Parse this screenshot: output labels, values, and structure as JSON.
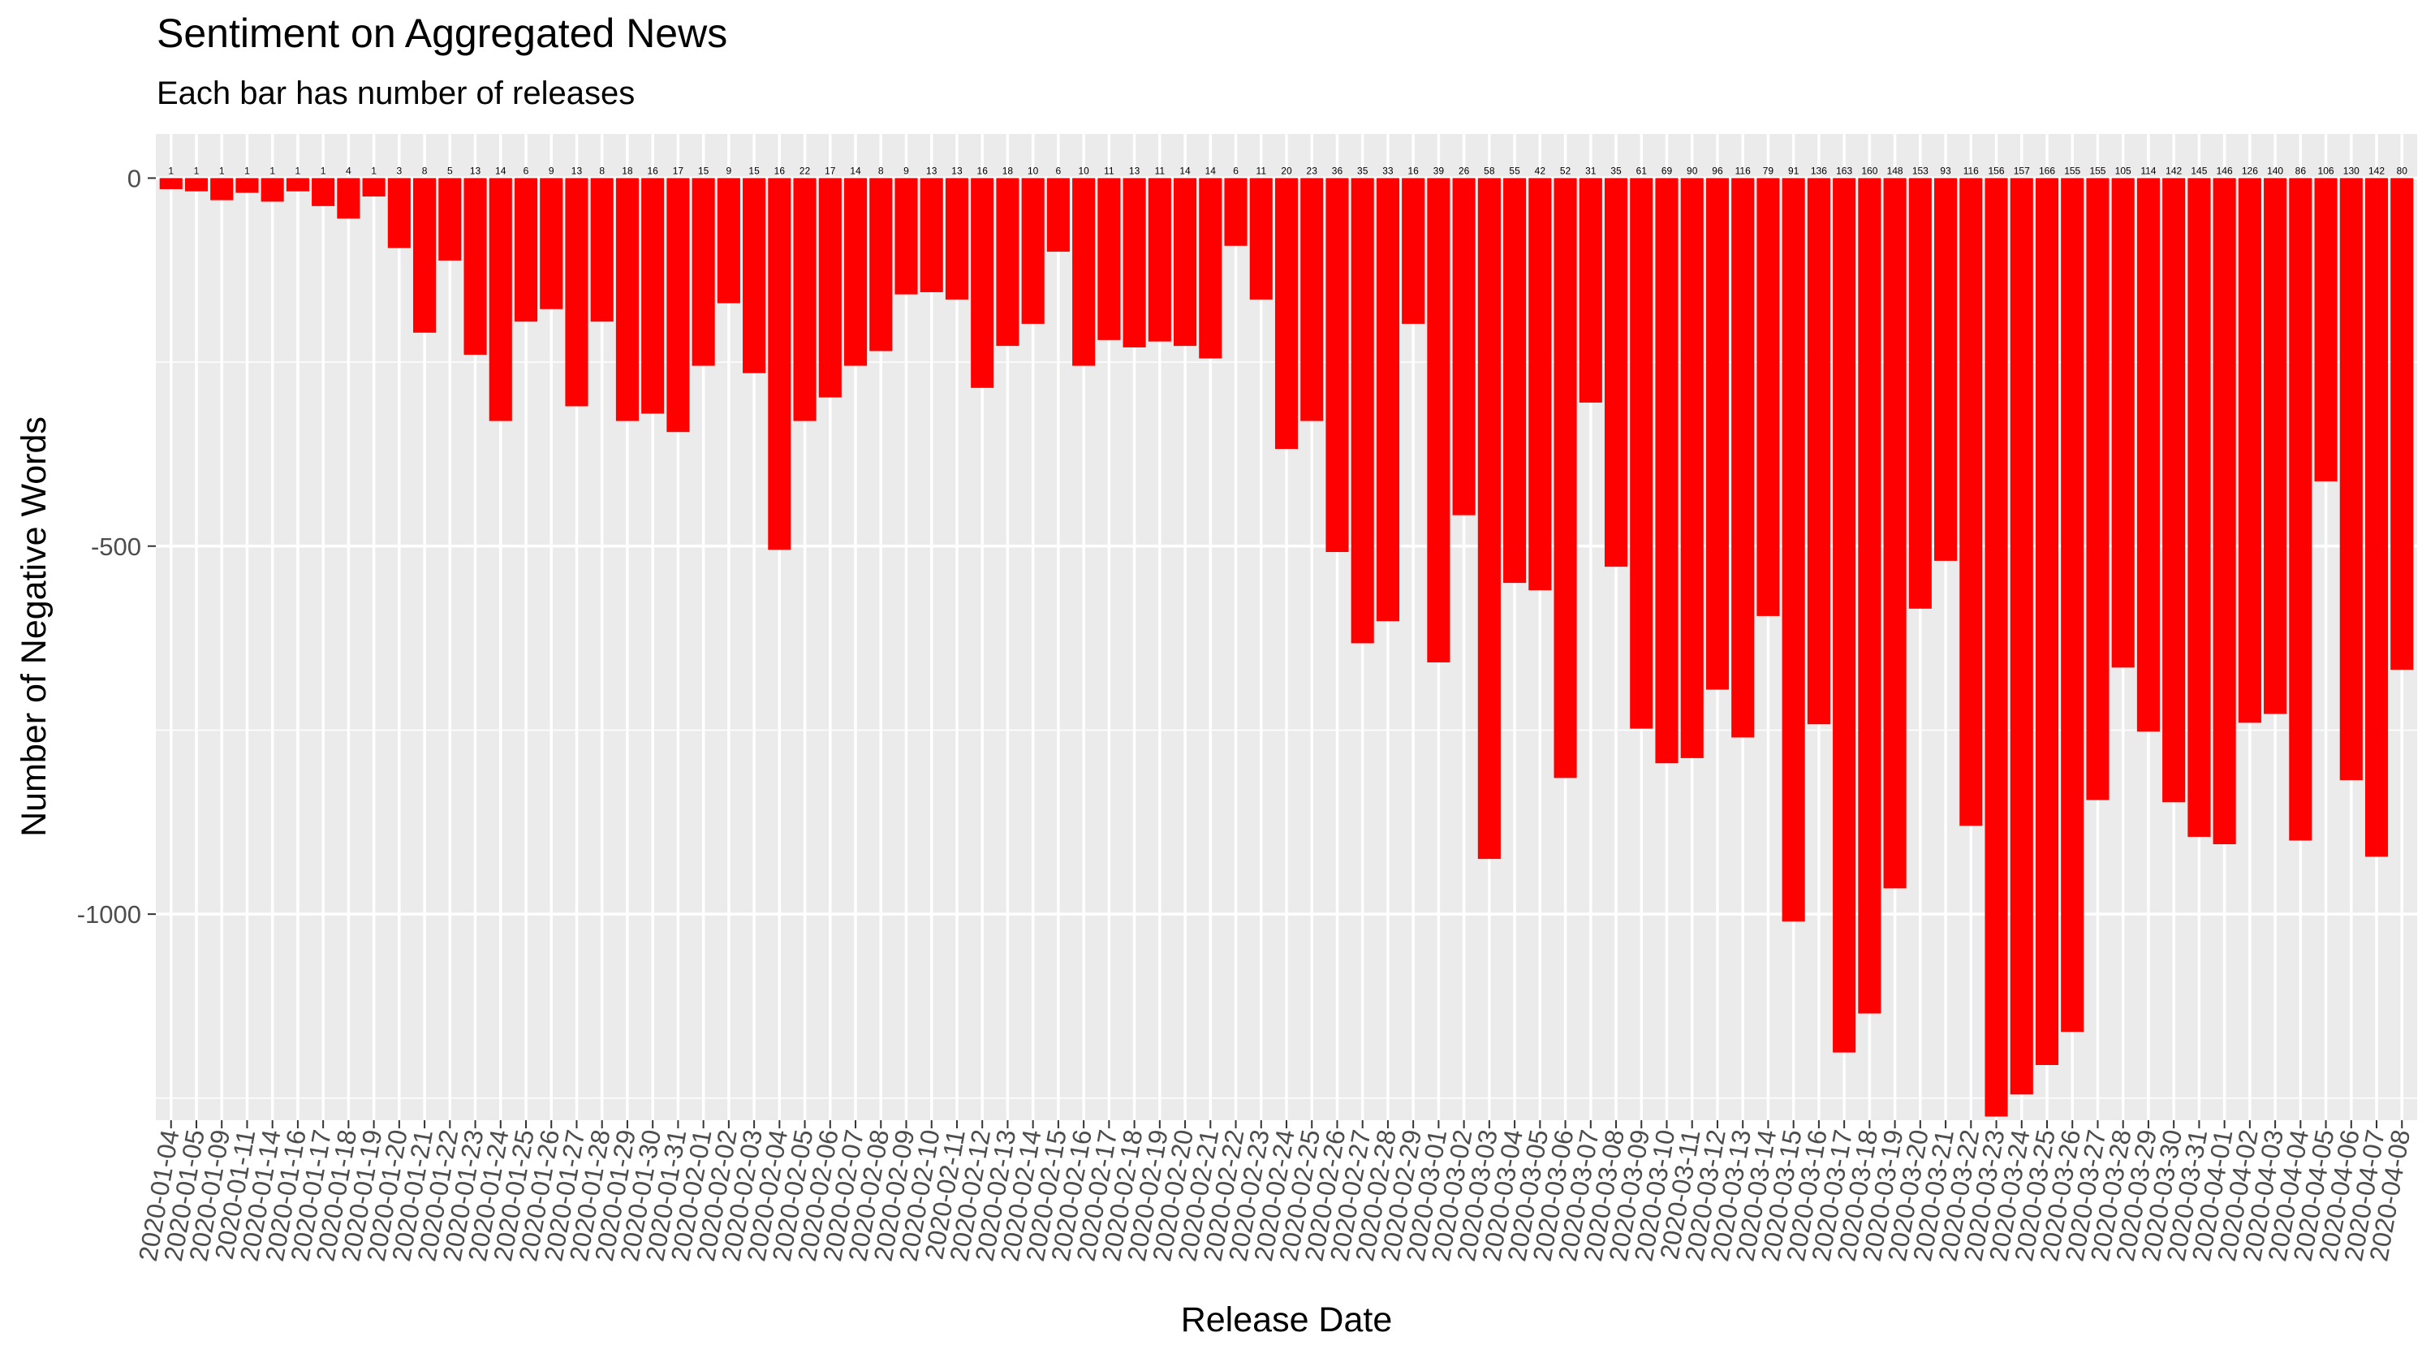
{
  "chart_data": {
    "type": "bar",
    "title": "Sentiment on Aggregated News",
    "subtitle": "Each bar has number of releases",
    "xlabel": "Release Date",
    "ylabel": "Number of Negative Words",
    "ylim": [
      -1280,
      60
    ],
    "yticks": [
      0,
      -500,
      -1000
    ],
    "ytick_labels": [
      "0",
      "-500",
      "-1000"
    ],
    "grid": true,
    "legend": "none",
    "bar_color": "#ff0000",
    "panel_color": "#ebebeb",
    "categories": [
      "2020-01-04",
      "2020-01-05",
      "2020-01-09",
      "2020-01-11",
      "2020-01-14",
      "2020-01-16",
      "2020-01-17",
      "2020-01-18",
      "2020-01-19",
      "2020-01-20",
      "2020-01-21",
      "2020-01-22",
      "2020-01-23",
      "2020-01-24",
      "2020-01-25",
      "2020-01-26",
      "2020-01-27",
      "2020-01-28",
      "2020-01-29",
      "2020-01-30",
      "2020-01-31",
      "2020-02-01",
      "2020-02-02",
      "2020-02-03",
      "2020-02-04",
      "2020-02-05",
      "2020-02-06",
      "2020-02-07",
      "2020-02-08",
      "2020-02-09",
      "2020-02-10",
      "2020-02-11",
      "2020-02-12",
      "2020-02-13",
      "2020-02-14",
      "2020-02-15",
      "2020-02-16",
      "2020-02-17",
      "2020-02-18",
      "2020-02-19",
      "2020-02-20",
      "2020-02-21",
      "2020-02-22",
      "2020-02-23",
      "2020-02-24",
      "2020-02-25",
      "2020-02-26",
      "2020-02-27",
      "2020-02-28",
      "2020-02-29",
      "2020-03-01",
      "2020-03-02",
      "2020-03-03",
      "2020-03-04",
      "2020-03-05",
      "2020-03-06",
      "2020-03-07",
      "2020-03-08",
      "2020-03-09",
      "2020-03-10",
      "2020-03-11",
      "2020-03-12",
      "2020-03-13",
      "2020-03-14",
      "2020-03-15",
      "2020-03-16",
      "2020-03-17",
      "2020-03-18",
      "2020-03-19",
      "2020-03-20",
      "2020-03-21",
      "2020-03-22",
      "2020-03-23",
      "2020-03-24",
      "2020-03-25",
      "2020-03-26",
      "2020-03-27",
      "2020-03-28",
      "2020-03-29",
      "2020-03-30",
      "2020-03-31",
      "2020-04-01",
      "2020-04-02",
      "2020-04-03",
      "2020-04-04",
      "2020-04-05",
      "2020-04-06",
      "2020-04-07",
      "2020-04-08"
    ],
    "tick_labels": [
      "2020-01-04",
      "2020-01-05",
      "2020-01-09",
      "2020-01-11",
      "2020-01-14",
      "2020-01-16",
      "2020-01-17",
      "2020-01-18",
      "2020-01-19",
      "2020-01-20",
      "2020-01-21",
      "2020-01-22",
      "2020-01-23",
      "2020-01-24",
      "2020-01-25",
      "2020-01-26",
      "2020-01-27",
      "2020-01-28",
      "2020-01-29",
      "2020-01-30",
      "2020-01-31",
      "2020-02-01",
      "2020-02-02",
      "2020-02-03",
      "2020-02-04",
      "2020-02-05",
      "2020-02-06",
      "2020-02-07",
      "2020-02-08",
      "2020-02-09",
      "2020-02-10",
      "2020-02-11",
      "2020-02-12",
      "2020-02-13",
      "2020-02-14",
      "2020-02-15",
      "2020-02-16",
      "2020-02-17",
      "2020-02-18",
      "2020-02-19",
      "2020-02-20",
      "2020-02-21",
      "2020-02-22",
      "2020-02-23",
      "2020-02-24",
      "2020-02-25",
      "2020-02-26",
      "2020-02-27",
      "2020-02-28",
      "2020-02-29",
      "2020-03-01",
      "2020-03-02",
      "2020-03-03",
      "2020-03-04",
      "2020-03-05",
      "2020-03-06",
      "2020-03-07",
      "2020-03-08",
      "2020-03-09",
      "2020-03-10",
      "2020-03-11",
      "2020-03-12",
      "2020-03-13",
      "2020-03-14",
      "2020-03-15",
      "2020-03-16",
      "2020-03-17",
      "2020-03-18",
      "2020-03-19",
      "2020-03-20",
      "2020-03-21",
      "2020-03-22",
      "2020-03-23",
      "2020-03-24",
      "2020-03-25",
      "2020-03-26",
      "2020-03-27",
      "2020-03-28",
      "2020-03-29",
      "2020-03-30",
      "2020-03-31",
      "2020-04-01",
      "2020-04-02",
      "2020-04-03",
      "2020-04-04",
      "2020-04-05",
      "2020-04-06",
      "2020-04-07",
      "2020-04-08"
    ],
    "values": [
      -15,
      -18,
      -30,
      -20,
      -32,
      -18,
      -38,
      -55,
      -25,
      -95,
      -210,
      -112,
      -240,
      -330,
      -195,
      -178,
      -310,
      -195,
      -330,
      -320,
      -345,
      -255,
      -170,
      -265,
      -505,
      -330,
      -298,
      -255,
      -235,
      -158,
      -155,
      -165,
      -285,
      -228,
      -198,
      -100,
      -255,
      -220,
      -230,
      -222,
      -228,
      -245,
      -92,
      -165,
      -368,
      -330,
      -508,
      -632,
      -602,
      -198,
      -658,
      -458,
      -925,
      -550,
      -560,
      -815,
      -305,
      -528,
      -748,
      -795,
      -788,
      -695,
      -760,
      -595,
      -1010,
      -742,
      -1188,
      -1135,
      -965,
      -585,
      -520,
      -880,
      -1275,
      -1245,
      -1205,
      -1160,
      -845,
      -665,
      -752,
      -848,
      -895,
      -905,
      -740,
      -728,
      -900,
      -412,
      -818,
      -922,
      -668
    ],
    "data_labels": [
      "1",
      "1",
      "1",
      "1",
      "1",
      "1",
      "1",
      "4",
      "1",
      "3",
      "8",
      "5",
      "13",
      "14",
      "6",
      "9",
      "13",
      "8",
      "18",
      "16",
      "17",
      "15",
      "9",
      "15",
      "16",
      "22",
      "17",
      "14",
      "8",
      "9",
      "13",
      "13",
      "16",
      "18",
      "10",
      "6",
      "10",
      "11",
      "13",
      "11",
      "14",
      "14",
      "6",
      "11",
      "20",
      "23",
      "36",
      "35",
      "33",
      "16",
      "39",
      "26",
      "58",
      "55",
      "42",
      "52",
      "31",
      "35",
      "61",
      "69",
      "90",
      "96",
      "116",
      "79",
      "91",
      "136",
      "163",
      "160",
      "148",
      "153",
      "93",
      "116",
      "156",
      "157",
      "166",
      "155",
      "155",
      "105",
      "114",
      "142",
      "145",
      "146",
      "126",
      "140",
      "86",
      "106",
      "130",
      "142",
      "80"
    ]
  }
}
